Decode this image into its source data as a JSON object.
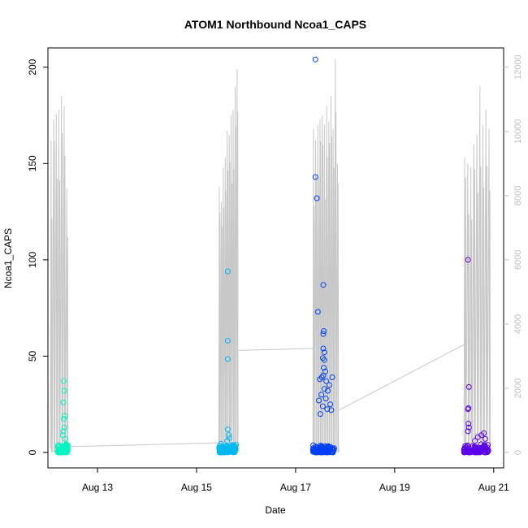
{
  "chart_data": {
    "type": "scatter",
    "title": "ATOM1 Northbound Ncoa1_CAPS",
    "xlabel": "Date",
    "ylabel": "Ncoa1_CAPS",
    "x_ticks": [
      {
        "label": "Aug 13",
        "day": 13
      },
      {
        "label": "Aug 15",
        "day": 15
      },
      {
        "label": "Aug 17",
        "day": 17
      },
      {
        "label": "Aug 19",
        "day": 19
      },
      {
        "label": "Aug 21",
        "day": 21
      }
    ],
    "xlim": [
      12.0,
      21.2
    ],
    "ylim": [
      -8,
      210
    ],
    "y_ticks": [
      0,
      50,
      100,
      150,
      200
    ],
    "y2lim": [
      -480,
      12600
    ],
    "y2_ticks": [
      0,
      2000,
      4000,
      6000,
      8000,
      10000,
      12000
    ],
    "grid": false,
    "legend": "none",
    "colors": {
      "axis": "#000000",
      "secondary_axis": "#bebebe",
      "line": "#c8c8c8",
      "group1": "#00f5c0",
      "group2": "#00b8f0",
      "group3": "#0040f5",
      "group4": "#5a00e8"
    },
    "groups": [
      {
        "color_key": "group1",
        "day_range": [
          12.2,
          12.4
        ],
        "outliers": [
          {
            "x": 12.32,
            "y": 37
          },
          {
            "x": 12.33,
            "y": 32
          },
          {
            "x": 12.31,
            "y": 26
          },
          {
            "x": 12.34,
            "y": 19
          },
          {
            "x": 12.32,
            "y": 17.5
          },
          {
            "x": 12.33,
            "y": 13
          },
          {
            "x": 12.31,
            "y": 11
          },
          {
            "x": 12.3,
            "y": 9
          },
          {
            "x": 12.35,
            "y": 7
          }
        ]
      },
      {
        "color_key": "group2",
        "day_range": [
          15.45,
          15.82
        ],
        "outliers": [
          {
            "x": 15.63,
            "y": 94
          },
          {
            "x": 15.63,
            "y": 58
          },
          {
            "x": 15.63,
            "y": 48.5
          },
          {
            "x": 15.63,
            "y": 12
          },
          {
            "x": 15.65,
            "y": 9
          },
          {
            "x": 15.66,
            "y": 7.5
          },
          {
            "x": 15.62,
            "y": 6
          }
        ]
      },
      {
        "color_key": "group3",
        "day_range": [
          17.35,
          17.78
        ],
        "outliers": [
          {
            "x": 17.4,
            "y": 204
          },
          {
            "x": 17.4,
            "y": 143
          },
          {
            "x": 17.43,
            "y": 132
          },
          {
            "x": 17.45,
            "y": 73
          },
          {
            "x": 17.56,
            "y": 87
          },
          {
            "x": 17.57,
            "y": 63
          },
          {
            "x": 17.56,
            "y": 61.5
          },
          {
            "x": 17.56,
            "y": 54
          },
          {
            "x": 17.58,
            "y": 52
          },
          {
            "x": 17.55,
            "y": 49
          },
          {
            "x": 17.58,
            "y": 48
          },
          {
            "x": 17.57,
            "y": 44
          },
          {
            "x": 17.6,
            "y": 42
          },
          {
            "x": 17.56,
            "y": 40
          },
          {
            "x": 17.53,
            "y": 39
          },
          {
            "x": 17.49,
            "y": 38
          },
          {
            "x": 17.74,
            "y": 39
          },
          {
            "x": 17.62,
            "y": 37
          },
          {
            "x": 17.68,
            "y": 35
          },
          {
            "x": 17.58,
            "y": 33
          },
          {
            "x": 17.65,
            "y": 32
          },
          {
            "x": 17.52,
            "y": 30
          },
          {
            "x": 17.61,
            "y": 28
          },
          {
            "x": 17.47,
            "y": 27
          },
          {
            "x": 17.7,
            "y": 25
          },
          {
            "x": 17.55,
            "y": 24
          },
          {
            "x": 17.64,
            "y": 22.5
          },
          {
            "x": 17.72,
            "y": 22
          },
          {
            "x": 17.5,
            "y": 20
          }
        ]
      },
      {
        "color_key": "group4",
        "day_range": [
          20.4,
          20.9
        ],
        "outliers": [
          {
            "x": 20.48,
            "y": 100
          },
          {
            "x": 20.5,
            "y": 34
          },
          {
            "x": 20.49,
            "y": 23
          },
          {
            "x": 20.48,
            "y": 22.5
          },
          {
            "x": 20.49,
            "y": 15
          },
          {
            "x": 20.5,
            "y": 13
          },
          {
            "x": 20.48,
            "y": 11
          },
          {
            "x": 20.8,
            "y": 10
          },
          {
            "x": 20.75,
            "y": 9
          },
          {
            "x": 20.68,
            "y": 8
          },
          {
            "x": 20.83,
            "y": 7
          },
          {
            "x": 20.62,
            "y": 6
          }
        ]
      }
    ],
    "line_segments": [
      {
        "day_range": [
          12.05,
          12.42
        ],
        "peaks": [
          162,
          173,
          176,
          178,
          185,
          180,
          137
        ]
      },
      {
        "day_range": [
          15.45,
          15.85
        ],
        "peaks": [
          138,
          130,
          148,
          153,
          167,
          165,
          175,
          178,
          190,
          199
        ]
      },
      {
        "day_range": [
          17.35,
          17.88
        ],
        "peaks": [
          168,
          162,
          170,
          173,
          175,
          170,
          180,
          172,
          185,
          168,
          204,
          150
        ]
      },
      {
        "day_range": [
          20.4,
          20.95
        ],
        "peaks": [
          153,
          150,
          148,
          160,
          165,
          190,
          170,
          178,
          168
        ]
      }
    ],
    "line_bridges": [
      {
        "from_day": 12.42,
        "from_y": 3,
        "to_day": 15.45,
        "to_y": 5
      },
      {
        "from_day": 15.85,
        "from_y": 53,
        "to_day": 17.35,
        "to_y": 54
      },
      {
        "from_day": 17.88,
        "from_y": 22,
        "to_day": 20.4,
        "to_y": 56
      }
    ]
  }
}
